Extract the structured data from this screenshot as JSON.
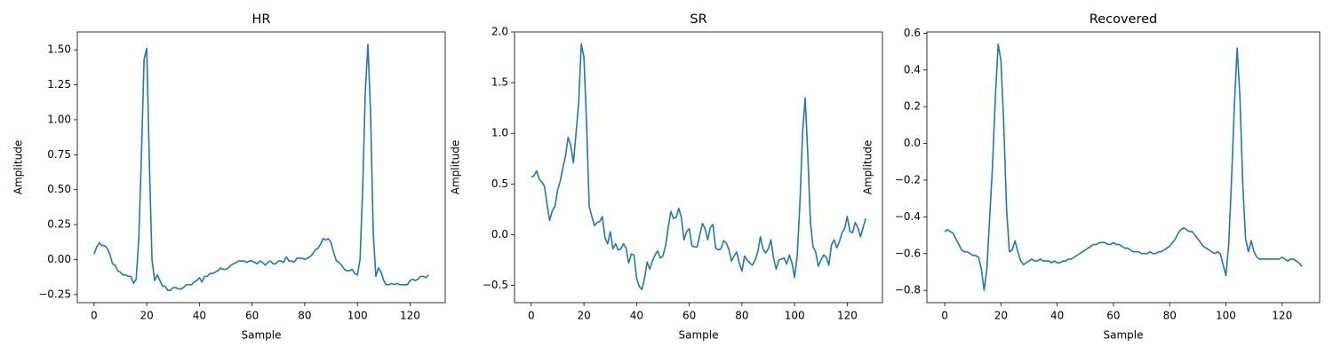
{
  "chart_data": [
    {
      "type": "line",
      "title": "HR",
      "xlabel": "Sample",
      "ylabel": "Amplitude",
      "x": [
        0,
        1,
        2,
        3,
        4,
        5,
        6,
        7,
        8,
        9,
        10,
        11,
        12,
        13,
        14,
        15,
        16,
        17,
        18,
        19,
        20,
        21,
        22,
        23,
        24,
        25,
        26,
        27,
        28,
        29,
        30,
        31,
        32,
        33,
        34,
        35,
        36,
        37,
        38,
        39,
        40,
        41,
        42,
        43,
        44,
        45,
        46,
        47,
        48,
        49,
        50,
        51,
        52,
        53,
        54,
        55,
        56,
        57,
        58,
        59,
        60,
        61,
        62,
        63,
        64,
        65,
        66,
        67,
        68,
        69,
        70,
        71,
        72,
        73,
        74,
        75,
        76,
        77,
        78,
        79,
        80,
        81,
        82,
        83,
        84,
        85,
        86,
        87,
        88,
        89,
        90,
        91,
        92,
        93,
        94,
        95,
        96,
        97,
        98,
        99,
        100,
        101,
        102,
        103,
        104,
        105,
        106,
        107,
        108,
        109,
        110,
        111,
        112,
        113,
        114,
        115,
        116,
        117,
        118,
        119,
        120,
        121,
        122,
        123,
        124,
        125,
        126,
        127
      ],
      "series": [
        {
          "color": "#1f77b4",
          "values": [
            0.04,
            0.09,
            0.12,
            0.1,
            0.1,
            0.08,
            0.04,
            -0.03,
            -0.04,
            -0.08,
            -0.09,
            -0.11,
            -0.11,
            -0.12,
            -0.12,
            -0.17,
            -0.14,
            0.15,
            0.75,
            1.43,
            1.51,
            0.7,
            0.0,
            -0.15,
            -0.11,
            -0.15,
            -0.19,
            -0.19,
            -0.22,
            -0.22,
            -0.2,
            -0.2,
            -0.21,
            -0.21,
            -0.2,
            -0.18,
            -0.18,
            -0.18,
            -0.16,
            -0.15,
            -0.13,
            -0.16,
            -0.12,
            -0.12,
            -0.1,
            -0.1,
            -0.09,
            -0.08,
            -0.06,
            -0.07,
            -0.07,
            -0.06,
            -0.04,
            -0.03,
            -0.02,
            -0.01,
            -0.01,
            -0.01,
            -0.02,
            -0.01,
            -0.01,
            -0.02,
            -0.03,
            -0.01,
            -0.02,
            -0.04,
            -0.02,
            -0.01,
            -0.03,
            -0.03,
            -0.01,
            -0.01,
            -0.02,
            0.02,
            -0.01,
            -0.01,
            -0.02,
            0.01,
            0.01,
            0.01,
            0.0,
            0.01,
            0.02,
            0.04,
            0.07,
            0.08,
            0.11,
            0.15,
            0.14,
            0.15,
            0.12,
            0.05,
            -0.01,
            -0.02,
            -0.04,
            -0.07,
            -0.08,
            -0.08,
            -0.07,
            -0.1,
            -0.11,
            0.0,
            0.5,
            1.2,
            1.54,
            1.05,
            0.2,
            -0.12,
            -0.06,
            -0.09,
            -0.15,
            -0.18,
            -0.18,
            -0.17,
            -0.18,
            -0.17,
            -0.18,
            -0.18,
            -0.18,
            -0.18,
            -0.15,
            -0.14,
            -0.15,
            -0.14,
            -0.12,
            -0.12,
            -0.13,
            -0.11
          ]
        }
      ],
      "xlim": [
        -6.35,
        133.35
      ],
      "xticks": [
        0,
        20,
        40,
        60,
        80,
        100,
        120
      ],
      "ylim": [
        -0.308,
        1.628
      ],
      "yticks": [
        {
          "value": -0.25,
          "label": "−0.25"
        },
        {
          "value": 0,
          "label": "0.00"
        },
        0.25,
        {
          "value": 0.5,
          "label": "0.50"
        },
        0.75,
        {
          "value": 1,
          "label": "1.00"
        },
        1.25,
        {
          "value": 1.5,
          "label": "1.50"
        }
      ]
    },
    {
      "type": "line",
      "title": "SR",
      "xlabel": "Sample",
      "ylabel": "Amplitude",
      "x": [
        0,
        1,
        2,
        3,
        4,
        5,
        6,
        7,
        8,
        9,
        10,
        11,
        12,
        13,
        14,
        15,
        16,
        17,
        18,
        19,
        20,
        21,
        22,
        23,
        24,
        25,
        26,
        27,
        28,
        29,
        30,
        31,
        32,
        33,
        34,
        35,
        36,
        37,
        38,
        39,
        40,
        41,
        42,
        43,
        44,
        45,
        46,
        47,
        48,
        49,
        50,
        51,
        52,
        53,
        54,
        55,
        56,
        57,
        58,
        59,
        60,
        61,
        62,
        63,
        64,
        65,
        66,
        67,
        68,
        69,
        70,
        71,
        72,
        73,
        74,
        75,
        76,
        77,
        78,
        79,
        80,
        81,
        82,
        83,
        84,
        85,
        86,
        87,
        88,
        89,
        90,
        91,
        92,
        93,
        94,
        95,
        96,
        97,
        98,
        99,
        100,
        101,
        102,
        103,
        104,
        105,
        106,
        107,
        108,
        109,
        110,
        111,
        112,
        113,
        114,
        115,
        116,
        117,
        118,
        119,
        120,
        121,
        122,
        123,
        124,
        125,
        126,
        127
      ],
      "series": [
        {
          "color": "#1f77b4",
          "values": [
            0.57,
            0.58,
            0.63,
            0.55,
            0.52,
            0.48,
            0.3,
            0.14,
            0.24,
            0.28,
            0.44,
            0.53,
            0.66,
            0.78,
            0.96,
            0.88,
            0.71,
            1.0,
            1.3,
            1.88,
            1.75,
            1.1,
            0.28,
            0.18,
            0.09,
            0.12,
            0.13,
            0.18,
            -0.03,
            -0.09,
            0.03,
            -0.14,
            -0.09,
            -0.15,
            -0.14,
            -0.09,
            -0.13,
            -0.28,
            -0.19,
            -0.2,
            -0.43,
            -0.51,
            -0.54,
            -0.43,
            -0.27,
            -0.34,
            -0.26,
            -0.2,
            -0.16,
            -0.23,
            -0.21,
            -0.11,
            0.07,
            0.23,
            0.16,
            0.17,
            0.26,
            0.17,
            -0.05,
            0.03,
            0.06,
            -0.11,
            -0.12,
            -0.12,
            0.0,
            0.11,
            0.06,
            -0.05,
            0.07,
            0.1,
            -0.13,
            -0.15,
            -0.14,
            -0.06,
            -0.08,
            -0.14,
            -0.26,
            -0.21,
            -0.17,
            -0.28,
            -0.36,
            -0.21,
            -0.25,
            -0.28,
            -0.3,
            -0.25,
            -0.17,
            -0.02,
            -0.14,
            -0.18,
            -0.14,
            -0.05,
            -0.23,
            -0.34,
            -0.25,
            -0.24,
            -0.23,
            -0.29,
            -0.2,
            -0.28,
            -0.42,
            -0.2,
            0.3,
            1.0,
            1.35,
            0.8,
            0.12,
            -0.12,
            -0.17,
            -0.31,
            -0.25,
            -0.2,
            -0.22,
            -0.3,
            -0.1,
            -0.05,
            -0.13,
            -0.07,
            0.02,
            0.06,
            0.18,
            0.03,
            0.02,
            0.12,
            0.07,
            -0.02,
            0.07,
            0.16
          ]
        }
      ],
      "xlim": [
        -6.35,
        133.35
      ],
      "xticks": [
        0,
        20,
        40,
        60,
        80,
        100,
        120
      ],
      "ylim": [
        -0.67,
        2.0
      ],
      "yticks": [
        {
          "value": -0.5,
          "label": "−0.5"
        },
        {
          "value": 0,
          "label": "0.0"
        },
        0.5,
        {
          "value": 1,
          "label": "1.0"
        },
        1.5,
        {
          "value": 2,
          "label": "2.0"
        }
      ]
    },
    {
      "type": "line",
      "title": "Recovered",
      "xlabel": "Sample",
      "ylabel": "Amplitude",
      "x": [
        0,
        1,
        2,
        3,
        4,
        5,
        6,
        7,
        8,
        9,
        10,
        11,
        12,
        13,
        14,
        15,
        16,
        17,
        18,
        19,
        20,
        21,
        22,
        23,
        24,
        25,
        26,
        27,
        28,
        29,
        30,
        31,
        32,
        33,
        34,
        35,
        36,
        37,
        38,
        39,
        40,
        41,
        42,
        43,
        44,
        45,
        46,
        47,
        48,
        49,
        50,
        51,
        52,
        53,
        54,
        55,
        56,
        57,
        58,
        59,
        60,
        61,
        62,
        63,
        64,
        65,
        66,
        67,
        68,
        69,
        70,
        71,
        72,
        73,
        74,
        75,
        76,
        77,
        78,
        79,
        80,
        81,
        82,
        83,
        84,
        85,
        86,
        87,
        88,
        89,
        90,
        91,
        92,
        93,
        94,
        95,
        96,
        97,
        98,
        99,
        100,
        101,
        102,
        103,
        104,
        105,
        106,
        107,
        108,
        109,
        110,
        111,
        112,
        113,
        114,
        115,
        116,
        117,
        118,
        119,
        120,
        121,
        122,
        123,
        124,
        125,
        126,
        127
      ],
      "series": [
        {
          "color": "#1f77b4",
          "values": [
            -0.48,
            -0.47,
            -0.48,
            -0.49,
            -0.52,
            -0.55,
            -0.58,
            -0.59,
            -0.59,
            -0.6,
            -0.61,
            -0.61,
            -0.62,
            -0.68,
            -0.8,
            -0.68,
            -0.4,
            -0.12,
            0.25,
            0.54,
            0.45,
            0.1,
            -0.36,
            -0.59,
            -0.58,
            -0.53,
            -0.59,
            -0.64,
            -0.66,
            -0.65,
            -0.64,
            -0.63,
            -0.64,
            -0.64,
            -0.63,
            -0.64,
            -0.64,
            -0.64,
            -0.65,
            -0.64,
            -0.65,
            -0.65,
            -0.64,
            -0.64,
            -0.63,
            -0.63,
            -0.62,
            -0.61,
            -0.6,
            -0.59,
            -0.58,
            -0.57,
            -0.56,
            -0.55,
            -0.55,
            -0.54,
            -0.54,
            -0.54,
            -0.55,
            -0.55,
            -0.54,
            -0.55,
            -0.55,
            -0.56,
            -0.57,
            -0.57,
            -0.58,
            -0.59,
            -0.59,
            -0.59,
            -0.6,
            -0.6,
            -0.6,
            -0.59,
            -0.6,
            -0.6,
            -0.59,
            -0.59,
            -0.58,
            -0.57,
            -0.56,
            -0.54,
            -0.52,
            -0.49,
            -0.47,
            -0.46,
            -0.47,
            -0.48,
            -0.48,
            -0.5,
            -0.52,
            -0.54,
            -0.56,
            -0.57,
            -0.58,
            -0.59,
            -0.6,
            -0.59,
            -0.6,
            -0.66,
            -0.72,
            -0.55,
            -0.2,
            0.2,
            0.52,
            0.25,
            -0.22,
            -0.52,
            -0.59,
            -0.53,
            -0.59,
            -0.62,
            -0.63,
            -0.63,
            -0.63,
            -0.63,
            -0.63,
            -0.63,
            -0.63,
            -0.63,
            -0.62,
            -0.63,
            -0.64,
            -0.63,
            -0.63,
            -0.64,
            -0.65,
            -0.67
          ]
        }
      ],
      "xlim": [
        -6.35,
        133.35
      ],
      "xticks": [
        0,
        20,
        40,
        60,
        80,
        100,
        120
      ],
      "ylim": [
        -0.867,
        0.607
      ],
      "yticks": [
        {
          "value": -0.8,
          "label": "−0.8"
        },
        {
          "value": -0.6,
          "label": "−0.6"
        },
        {
          "value": -0.4,
          "label": "−0.4"
        },
        {
          "value": -0.2,
          "label": "−0.2"
        },
        {
          "value": 0,
          "label": "0.0"
        },
        0.2,
        0.4,
        0.6
      ]
    }
  ]
}
